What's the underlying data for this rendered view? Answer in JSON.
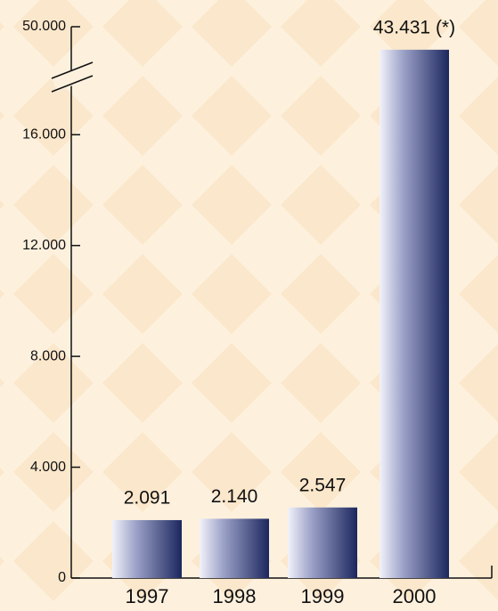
{
  "chart_data": {
    "type": "bar",
    "categories": [
      "1997",
      "1998",
      "1999",
      "2000"
    ],
    "values": [
      2091,
      2140,
      2547,
      43431
    ],
    "value_labels": [
      "2.091",
      "2.140",
      "2.547",
      "43.431 (*)"
    ],
    "color": "#1c275e",
    "ylim": [
      0,
      50000
    ],
    "ybreak": [
      18000,
      35000
    ],
    "yticks": [
      {
        "value": 0,
        "label": "0"
      },
      {
        "value": 4000,
        "label": "4.000"
      },
      {
        "value": 8000,
        "label": "8.000"
      },
      {
        "value": 12000,
        "label": "12.000"
      },
      {
        "value": 16000,
        "label": "16.000"
      },
      {
        "value": 50000,
        "label": "50.000"
      }
    ],
    "grid": false
  }
}
